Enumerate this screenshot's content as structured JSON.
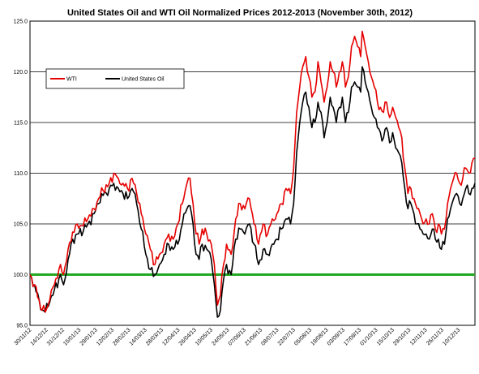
{
  "chart_data": {
    "type": "line",
    "title": "United States Oil and WTI Oil Normalized Prices 2012-2013 (November 30th, 2012)",
    "xlabel": "",
    "ylabel": "",
    "ylim": [
      95.0,
      125.0
    ],
    "y_ticks": [
      "95.0",
      "100.0",
      "105.0",
      "110.0",
      "115.0",
      "120.0",
      "125.0"
    ],
    "grid": "horizontal",
    "legend_placement": "top-left",
    "baseline": 100.0,
    "baseline_color": "#22a822",
    "x_ticks": [
      "30/11/12",
      "14/12/12",
      "31/12/12",
      "15/01/13",
      "29/01/13",
      "12/02/13",
      "28/02/13",
      "14/03/13",
      "28/03/13",
      "12/04/13",
      "26/04/13",
      "10/05/13",
      "24/05/13",
      "07/06/13",
      "21/06/13",
      "08/07/13",
      "22/07/13",
      "05/08/13",
      "19/08/13",
      "03/09/13",
      "17/09/13",
      "01/10/13",
      "15/10/13",
      "29/10/13",
      "12/11/13",
      "26/11/13",
      "10/12/13"
    ],
    "series": [
      {
        "name": "WTI",
        "color": "#e60000",
        "keypoints": [
          [
            0,
            100.0
          ],
          [
            3,
            99.0
          ],
          [
            6,
            97.5
          ],
          [
            8,
            96.5
          ],
          [
            10,
            96.3
          ],
          [
            13,
            97.5
          ],
          [
            16,
            99.0
          ],
          [
            20,
            101.0
          ],
          [
            22,
            100.0
          ],
          [
            25,
            102.5
          ],
          [
            28,
            104.2
          ],
          [
            31,
            105.0
          ],
          [
            35,
            104.8
          ],
          [
            38,
            105.5
          ],
          [
            42,
            106.5
          ],
          [
            45,
            107.5
          ],
          [
            48,
            108.3
          ],
          [
            52,
            109.0
          ],
          [
            55,
            110.0
          ],
          [
            58,
            109.5
          ],
          [
            61,
            109.0
          ],
          [
            64,
            108.5
          ],
          [
            67,
            109.5
          ],
          [
            70,
            108.0
          ],
          [
            73,
            106.0
          ],
          [
            76,
            104.0
          ],
          [
            79,
            102.5
          ],
          [
            82,
            101.0
          ],
          [
            85,
            102.0
          ],
          [
            88,
            103.0
          ],
          [
            91,
            104.0
          ],
          [
            94,
            103.5
          ],
          [
            97,
            105.0
          ],
          [
            100,
            107.0
          ],
          [
            103,
            109.0
          ],
          [
            105,
            109.5
          ],
          [
            107,
            107.0
          ],
          [
            109,
            104.0
          ],
          [
            111,
            103.0
          ],
          [
            113,
            104.5
          ],
          [
            116,
            104.0
          ],
          [
            119,
            103.0
          ],
          [
            121,
            101.0
          ],
          [
            123,
            97.0
          ],
          [
            125,
            98.0
          ],
          [
            127,
            101.0
          ],
          [
            129,
            103.0
          ],
          [
            132,
            102.0
          ],
          [
            135,
            105.5
          ],
          [
            138,
            107.0
          ],
          [
            141,
            106.5
          ],
          [
            144,
            107.5
          ],
          [
            147,
            105.0
          ],
          [
            150,
            103.0
          ],
          [
            153,
            105.0
          ],
          [
            156,
            104.0
          ],
          [
            159,
            105.5
          ],
          [
            162,
            106.0
          ],
          [
            165,
            107.0
          ],
          [
            168,
            108.5
          ],
          [
            171,
            108.0
          ],
          [
            173,
            110.5
          ],
          [
            175,
            116.0
          ],
          [
            177,
            118.5
          ],
          [
            179,
            120.5
          ],
          [
            181,
            121.5
          ],
          [
            183,
            119.5
          ],
          [
            185,
            117.5
          ],
          [
            187,
            118.0
          ],
          [
            189,
            121.0
          ],
          [
            191,
            119.0
          ],
          [
            193,
            117.0
          ],
          [
            195,
            118.5
          ],
          [
            197,
            121.0
          ],
          [
            199,
            120.0
          ],
          [
            201,
            118.5
          ],
          [
            203,
            120.0
          ],
          [
            205,
            121.0
          ],
          [
            207,
            118.5
          ],
          [
            209,
            119.5
          ],
          [
            211,
            122.5
          ],
          [
            213,
            123.5
          ],
          [
            215,
            122.5
          ],
          [
            217,
            121.5
          ],
          [
            218,
            124.0
          ],
          [
            220,
            122.5
          ],
          [
            222,
            121.0
          ],
          [
            224,
            119.5
          ],
          [
            226,
            118.5
          ],
          [
            228,
            117.0
          ],
          [
            230,
            116.5
          ],
          [
            232,
            116.0
          ],
          [
            234,
            117.0
          ],
          [
            236,
            115.5
          ],
          [
            238,
            116.5
          ],
          [
            240,
            115.5
          ],
          [
            242,
            114.5
          ],
          [
            244,
            113.5
          ],
          [
            246,
            110.5
          ],
          [
            248,
            108.0
          ],
          [
            250,
            108.5
          ],
          [
            252,
            107.5
          ],
          [
            254,
            106.5
          ],
          [
            256,
            106.0
          ],
          [
            258,
            105.0
          ],
          [
            260,
            105.5
          ],
          [
            262,
            105.0
          ],
          [
            264,
            106.0
          ],
          [
            266,
            104.5
          ],
          [
            268,
            105.0
          ],
          [
            270,
            104.0
          ],
          [
            272,
            104.5
          ],
          [
            274,
            107.0
          ],
          [
            276,
            108.5
          ],
          [
            278,
            109.5
          ],
          [
            280,
            110.0
          ],
          [
            282,
            109.0
          ],
          [
            284,
            109.5
          ],
          [
            286,
            110.5
          ],
          [
            288,
            110.0
          ],
          [
            290,
            111.0
          ],
          [
            292,
            111.5
          ]
        ]
      },
      {
        "name": "United States Oil",
        "color": "#000000",
        "keypoints": [
          [
            0,
            100.0
          ],
          [
            3,
            99.0
          ],
          [
            6,
            97.5
          ],
          [
            8,
            96.5
          ],
          [
            10,
            96.3
          ],
          [
            13,
            97.3
          ],
          [
            16,
            98.5
          ],
          [
            20,
            100.0
          ],
          [
            22,
            99.0
          ],
          [
            25,
            101.5
          ],
          [
            28,
            103.5
          ],
          [
            31,
            104.0
          ],
          [
            35,
            104.3
          ],
          [
            38,
            105.0
          ],
          [
            42,
            106.0
          ],
          [
            45,
            107.0
          ],
          [
            48,
            107.8
          ],
          [
            52,
            108.5
          ],
          [
            55,
            109.0
          ],
          [
            58,
            108.5
          ],
          [
            61,
            108.0
          ],
          [
            64,
            107.5
          ],
          [
            67,
            108.5
          ],
          [
            70,
            107.0
          ],
          [
            73,
            104.5
          ],
          [
            76,
            102.0
          ],
          [
            79,
            100.5
          ],
          [
            82,
            100.0
          ],
          [
            85,
            101.0
          ],
          [
            88,
            102.0
          ],
          [
            91,
            103.0
          ],
          [
            94,
            102.5
          ],
          [
            97,
            103.0
          ],
          [
            100,
            105.0
          ],
          [
            103,
            106.5
          ],
          [
            105,
            106.8
          ],
          [
            107,
            105.0
          ],
          [
            109,
            102.0
          ],
          [
            111,
            101.5
          ],
          [
            113,
            103.0
          ],
          [
            116,
            102.5
          ],
          [
            119,
            101.5
          ],
          [
            121,
            99.0
          ],
          [
            123,
            95.8
          ],
          [
            125,
            96.5
          ],
          [
            127,
            99.5
          ],
          [
            129,
            101.0
          ],
          [
            132,
            100.0
          ],
          [
            135,
            103.5
          ],
          [
            138,
            104.5
          ],
          [
            141,
            104.0
          ],
          [
            144,
            105.0
          ],
          [
            147,
            103.0
          ],
          [
            150,
            101.0
          ],
          [
            153,
            102.5
          ],
          [
            156,
            102.0
          ],
          [
            159,
            103.0
          ],
          [
            162,
            103.5
          ],
          [
            165,
            104.5
          ],
          [
            168,
            105.5
          ],
          [
            171,
            105.0
          ],
          [
            173,
            107.0
          ],
          [
            175,
            112.0
          ],
          [
            177,
            115.0
          ],
          [
            179,
            117.0
          ],
          [
            181,
            118.0
          ],
          [
            183,
            116.5
          ],
          [
            185,
            114.5
          ],
          [
            187,
            115.0
          ],
          [
            189,
            117.0
          ],
          [
            191,
            116.0
          ],
          [
            193,
            113.5
          ],
          [
            195,
            115.0
          ],
          [
            197,
            117.5
          ],
          [
            199,
            116.5
          ],
          [
            201,
            115.0
          ],
          [
            203,
            116.5
          ],
          [
            205,
            117.5
          ],
          [
            207,
            115.0
          ],
          [
            209,
            116.0
          ],
          [
            211,
            118.5
          ],
          [
            213,
            119.0
          ],
          [
            215,
            118.5
          ],
          [
            217,
            118.0
          ],
          [
            218,
            120.5
          ],
          [
            220,
            119.0
          ],
          [
            222,
            118.0
          ],
          [
            224,
            116.5
          ],
          [
            226,
            115.5
          ],
          [
            228,
            114.5
          ],
          [
            230,
            114.0
          ],
          [
            232,
            113.5
          ],
          [
            234,
            114.5
          ],
          [
            236,
            113.0
          ],
          [
            238,
            114.0
          ],
          [
            240,
            112.5
          ],
          [
            242,
            112.0
          ],
          [
            244,
            111.0
          ],
          [
            246,
            108.5
          ],
          [
            248,
            106.5
          ],
          [
            250,
            107.0
          ],
          [
            252,
            106.0
          ],
          [
            254,
            105.0
          ],
          [
            256,
            104.5
          ],
          [
            258,
            104.0
          ],
          [
            260,
            104.0
          ],
          [
            262,
            103.5
          ],
          [
            264,
            104.5
          ],
          [
            266,
            103.5
          ],
          [
            268,
            103.5
          ],
          [
            270,
            102.5
          ],
          [
            272,
            103.0
          ],
          [
            274,
            105.5
          ],
          [
            276,
            106.5
          ],
          [
            278,
            107.5
          ],
          [
            280,
            108.0
          ],
          [
            282,
            107.0
          ],
          [
            284,
            107.5
          ],
          [
            286,
            108.5
          ],
          [
            288,
            108.0
          ],
          [
            290,
            108.5
          ],
          [
            292,
            109.0
          ]
        ]
      }
    ]
  }
}
